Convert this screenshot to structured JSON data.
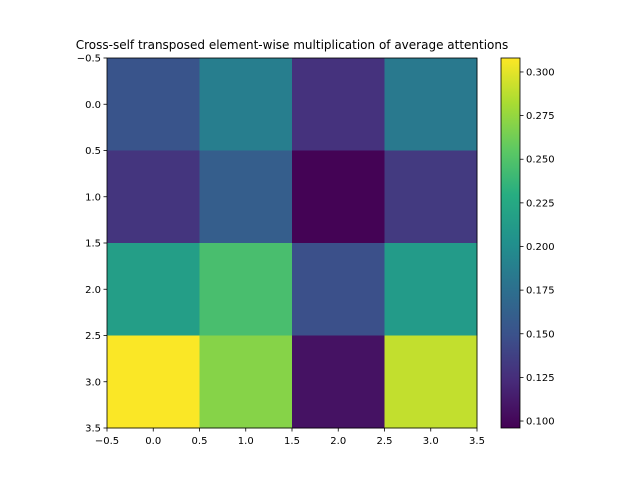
{
  "chart_data": {
    "type": "heatmap",
    "title": "Cross-self transposed element-wise multiplication of average attentions",
    "xlabel": "",
    "ylabel": "",
    "rows": 4,
    "cols": 4,
    "values": [
      [
        0.152,
        0.187,
        0.128,
        0.183
      ],
      [
        0.13,
        0.16,
        0.097,
        0.133
      ],
      [
        0.215,
        0.246,
        0.148,
        0.212
      ],
      [
        0.307,
        0.27,
        0.107,
        0.29
      ]
    ],
    "xlim": [
      -0.5,
      3.5
    ],
    "ylim": [
      3.5,
      -0.5
    ],
    "x_ticks": [
      "−0.5",
      "0.0",
      "0.5",
      "1.0",
      "1.5",
      "2.0",
      "2.5",
      "3.0",
      "3.5"
    ],
    "y_ticks": [
      "−0.5",
      "0.0",
      "0.5",
      "1.0",
      "1.5",
      "2.0",
      "2.5",
      "3.0",
      "3.5"
    ],
    "colormap": "viridis",
    "colorbar": {
      "min": 0.096,
      "max": 0.308,
      "ticks": [
        0.1,
        0.125,
        0.15,
        0.175,
        0.2,
        0.225,
        0.25,
        0.275,
        0.3
      ],
      "tick_labels": [
        "0.100",
        "0.125",
        "0.150",
        "0.175",
        "0.200",
        "0.225",
        "0.250",
        "0.275",
        "0.300"
      ]
    },
    "grid": false
  }
}
